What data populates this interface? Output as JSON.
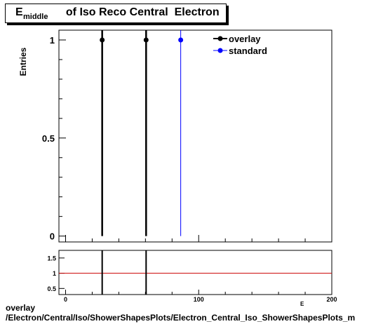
{
  "title": {
    "main": "E",
    "sub": "middle",
    "rest": "  of Iso Reco Central  Electron"
  },
  "footer": {
    "line1": "overlay",
    "line2": "/Electron/Central/Iso/ShowerShapesPlots/Electron_Central_Iso_ShowerShapesPlots_m"
  },
  "colors": {
    "overlay": "#000000",
    "standard": "#0000ff",
    "ratio_line": "#cc0000"
  },
  "chart_data": [
    {
      "type": "scatter",
      "ylabel": "Entries",
      "xlabel": "E",
      "xlim": [
        -5,
        200
      ],
      "ylim": [
        -0.03,
        1.05
      ],
      "y_ticks": [
        0,
        0.5,
        1
      ],
      "y_tick_labels": [
        "0",
        "0.5",
        "1"
      ],
      "legend_position": "top-right",
      "series": [
        {
          "name": "overlay",
          "x": [
            27.5,
            60.5
          ],
          "y": [
            1,
            1
          ]
        },
        {
          "name": "standard",
          "x": [
            86.5
          ],
          "y": [
            1
          ]
        }
      ]
    },
    {
      "type": "line",
      "xlim": [
        -5,
        200
      ],
      "ylim": [
        0.3,
        1.75
      ],
      "x_ticks": [
        0,
        100,
        200
      ],
      "x_tick_labels": [
        "0",
        "100",
        "200"
      ],
      "y_ticks": [
        0.5,
        1,
        1.5
      ],
      "y_tick_labels": [
        "0.5",
        "1",
        "1.5"
      ],
      "reference_y": 1,
      "markers_x": [
        27.5,
        60.5
      ]
    }
  ]
}
